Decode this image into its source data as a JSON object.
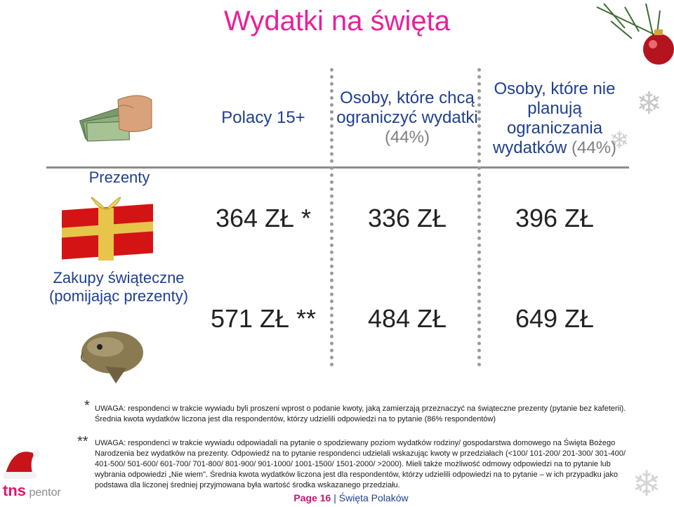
{
  "title": "Wydatki na święta",
  "columns": {
    "c1": "Polacy 15+",
    "c2_main": "Osoby, które chcą ograniczyć wydatki",
    "c2_pct": "(44%)",
    "c3_main": "Osoby, które nie planują ograniczania wydatków",
    "c3_pct": "(44%)"
  },
  "rows": [
    {
      "label": "Prezenty",
      "v1": "364 ZŁ *",
      "v2": "336 ZŁ",
      "v3": "396 ZŁ"
    },
    {
      "label": "Zakupy świąteczne (pomijając prezenty)",
      "v1": "571 ZŁ **",
      "v2": "484 ZŁ",
      "v3": "649 ZŁ"
    }
  ],
  "notes": [
    {
      "marker": "*",
      "text": "UWAGA: respondenci w trakcie wywiadu byli proszeni wprost o podanie kwoty, jaką zamierzają przeznaczyć na świąteczne prezenty (pytanie bez kafeterii). Średnia kwota wydatków liczona jest dla respondentów, którzy udzielili odpowiedzi na to pytanie (86% respondentów)"
    },
    {
      "marker": "**",
      "text": "UWAGA: respondenci w trakcie wywiadu odpowiadali na pytanie o spodziewany poziom wydatków rodziny/ gospodarstwa domowego na Święta Bożego Narodzenia bez wydatków na prezenty. Odpowiedź na to pytanie respondenci udzielali wskazując kwoty w przedziałach (<100/ 101-200/ 201-300/ 301-400/ 401-500/ 501-600/ 601-700/ 701-800/ 801-900/ 901-1000/ 1001-1500/ 1501-2000/ >2000). Mieli także możliwość odmowy odpowiedzi na to pytanie lub wybrania odpowiedzi „Nie wiem\". Średnia kwota wydatków liczona jest dla respondentów, którzy udzielili odpowiedzi na to pytanie – w ich przypadku jako podstawa dla liczonej średniej przyjmowana była wartość środka wskazanego przedziału."
    }
  ],
  "footer": {
    "page_label": "Page",
    "page_number": "16",
    "separator": "|",
    "section": "Święta Polaków"
  },
  "logo": {
    "brand": "tns",
    "sub": "pentor"
  },
  "colors": {
    "title": "#e6219a",
    "heading": "#1f3f90",
    "footer_accent": "#c0186f"
  },
  "icons": [
    "money-hand-icon",
    "gift-box-icon",
    "carp-fish-icon",
    "santa-hat-icon",
    "christmas-branch-icon",
    "snowflake-icon"
  ]
}
